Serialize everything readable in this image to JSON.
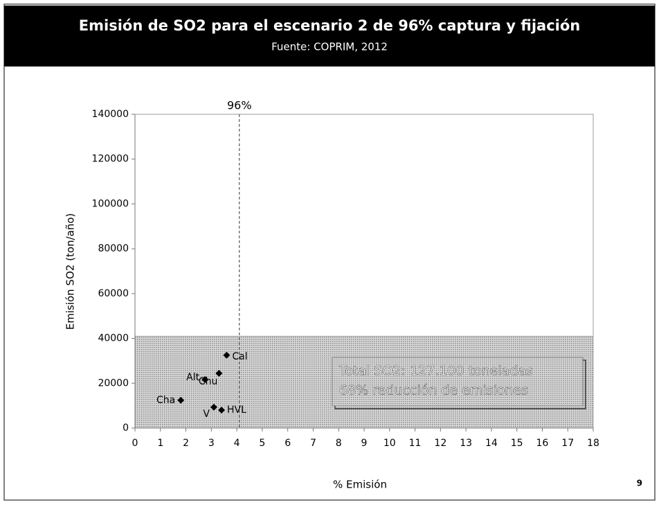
{
  "chart_data": {
    "type": "scatter",
    "title": "Emisión de SO2 para el escenario 2 de 96% captura y fijación",
    "subtitle": "Fuente: COPRIM, 2012",
    "x_label": "% Emisión",
    "y_label": "Emisión SO2  (ton/año)",
    "x": [
      3.6,
      3.3,
      2.75,
      1.8,
      3.1,
      3.4
    ],
    "values": [
      32500,
      24400,
      21600,
      12400,
      9300,
      8000
    ],
    "point_labels": [
      "Cal",
      "Chu",
      "Alt",
      "Cha",
      "V",
      "HVL"
    ],
    "color": "#000000",
    "xlim": [
      0,
      18
    ],
    "xticks": [
      0,
      1,
      2,
      3,
      4,
      5,
      6,
      7,
      8,
      9,
      10,
      11,
      12,
      13,
      14,
      15,
      16,
      17,
      18
    ],
    "ylim": [
      0,
      140000
    ],
    "yticks": [
      0,
      20000,
      40000,
      60000,
      80000,
      100000,
      120000,
      140000
    ],
    "highlight_band": {
      "ylim": [
        0,
        41000
      ],
      "color": "#b0b0b0"
    },
    "reference_line": {
      "x": 4.1,
      "label": "96%"
    },
    "annotation": [
      "Total SO2: 127.100 toneladas",
      "68% reducción de emisiones"
    ],
    "page_number": "9"
  }
}
